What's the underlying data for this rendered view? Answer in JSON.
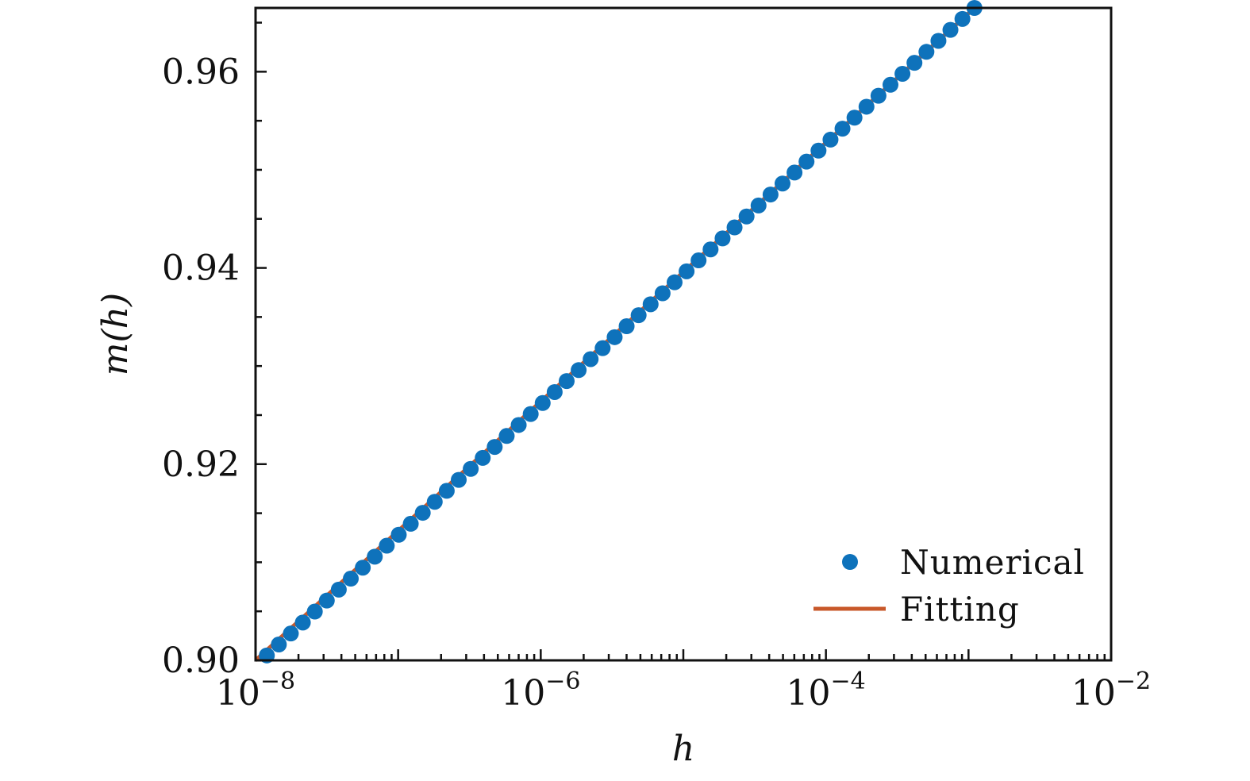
{
  "chart_data": {
    "type": "scatter",
    "xlabel": "h",
    "ylabel": "m(h)",
    "x_scale": "log",
    "xlim": [
      1e-08,
      0.01
    ],
    "ylim": [
      0.9,
      0.9665
    ],
    "x_ticks": [
      {
        "value": 1e-08,
        "base": "10",
        "exp": "−8"
      },
      {
        "value": 1e-06,
        "base": "10",
        "exp": "−6"
      },
      {
        "value": 0.0001,
        "base": "10",
        "exp": "−4"
      },
      {
        "value": 0.01,
        "base": "10",
        "exp": "−2"
      }
    ],
    "y_ticks": [
      {
        "value": 0.9,
        "label": "0.90"
      },
      {
        "value": 0.92,
        "label": "0.92"
      },
      {
        "value": 0.94,
        "label": "0.94"
      },
      {
        "value": 0.96,
        "label": "0.96"
      }
    ],
    "grid": false,
    "legend_position": "bottom-right",
    "series": [
      {
        "name": "Numerical",
        "kind": "scatter",
        "color": "#0e72bb",
        "x_range": [
          1.2e-08,
          0.0011
        ],
        "y_range": [
          0.9005,
          0.9665
        ],
        "n_points": 60
      },
      {
        "name": "Fitting",
        "kind": "line",
        "color": "#c8582a",
        "x_range": [
          1e-08,
          0.0011
        ],
        "y_range": [
          0.9,
          0.9665
        ]
      }
    ]
  }
}
